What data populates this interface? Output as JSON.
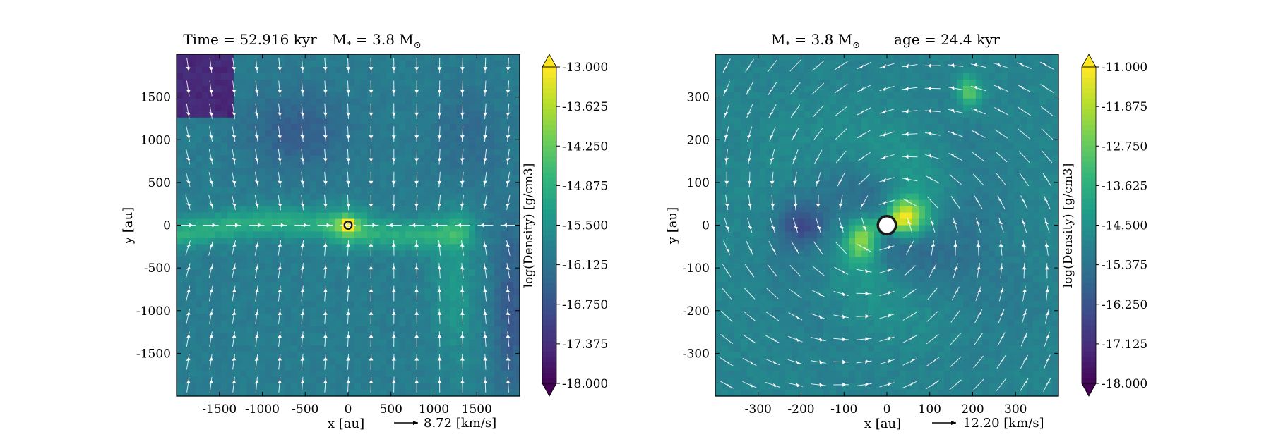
{
  "chart_data": [
    {
      "type": "heatmap",
      "title": "Time = 52.916 kyr    M$_*$ = 3.8 M$_\\odot$",
      "title_parts": {
        "time": "Time = 52.916 kyr",
        "mass_prefix": "M",
        "mass_sub": "*",
        "mass_value": " = 3.8 M",
        "mass_unit_sub": "⊙"
      },
      "xlabel": "x [au]",
      "ylabel": "y [au]",
      "xlim": [
        -2000,
        2000
      ],
      "ylim": [
        -2000,
        2000
      ],
      "xticks": [
        -1500,
        -1000,
        -500,
        0,
        500,
        1000,
        1500
      ],
      "yticks": [
        -1500,
        -1000,
        -500,
        0,
        500,
        1000,
        1500
      ],
      "colorbar": {
        "label": "log(Density) [g/cm3]",
        "range": [
          -18.0,
          -13.0
        ],
        "ticks": [
          "-13.000",
          "-13.625",
          "-14.250",
          "-14.875",
          "-15.500",
          "-16.125",
          "-16.750",
          "-17.375",
          "-18.000"
        ],
        "colormap": "viridis",
        "extend": "both"
      },
      "velocity_key": {
        "label": "8.72 [km/s]"
      },
      "sink": {
        "x": 0,
        "y": 0,
        "size": "small"
      },
      "features": "horizontal dense filament along y≈0 from x≈-2000 to 1200 au; peak density near the sink; low-density lobes in upper-left and right edges",
      "streamlines": true
    },
    {
      "type": "heatmap",
      "title": "M$_*$ = 3.8 M$_\\odot$    age = 24.4 kyr",
      "title_parts": {
        "mass_prefix": "M",
        "mass_sub": "*",
        "mass_value": " = 3.8 M",
        "mass_unit_sub": "⊙",
        "age": "age = 24.4 kyr"
      },
      "xlabel": "x [au]",
      "ylabel": "y [au]",
      "xlim": [
        -400,
        400
      ],
      "ylim": [
        -400,
        400
      ],
      "xticks": [
        -300,
        -200,
        -100,
        0,
        100,
        200,
        300
      ],
      "yticks": [
        -300,
        -200,
        -100,
        0,
        100,
        200,
        300
      ],
      "colorbar": {
        "label": "log(Density) [g/cm3]",
        "range": [
          -18.0,
          -11.0
        ],
        "ticks": [
          "-11.000",
          "-11.875",
          "-12.750",
          "-13.625",
          "-14.500",
          "-15.375",
          "-16.250",
          "-17.125",
          "-18.000"
        ],
        "colormap": "viridis",
        "extend": "both"
      },
      "velocity_key": {
        "label": "12.20 [km/s]"
      },
      "sink": {
        "x": 0,
        "y": 0,
        "size": "large"
      },
      "features": "spiral dense structure around the sink, bright clump near (50, 30) au, dense blob near (180, 320) au, low-density pocket near (-200, 0) au",
      "streamlines": true
    }
  ],
  "colors": {
    "viridis": [
      "#440154",
      "#482878",
      "#3e4989",
      "#31688e",
      "#26828e",
      "#1f9e89",
      "#35b779",
      "#6ece58",
      "#b5de2b",
      "#fde725"
    ],
    "streamline": "#ffffff",
    "sink_ring": "#1a1a1a"
  }
}
